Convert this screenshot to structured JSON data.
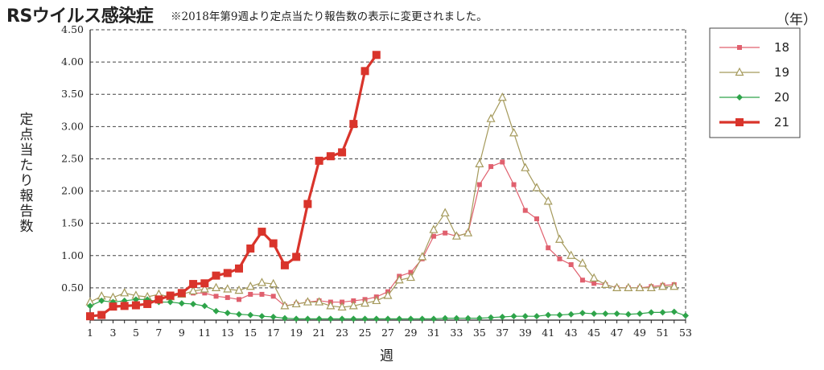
{
  "header": {
    "title": "RSウイルス感染症",
    "note": "※2018年第9週より定点当たり報告数の表示に変更されました。",
    "unit": "（年）"
  },
  "chart_data": {
    "type": "line",
    "title": "RSウイルス感染症",
    "xlabel": "週",
    "ylabel": "定点当たり報告数",
    "xlim": [
      1,
      53
    ],
    "ylim": [
      0,
      4.5
    ],
    "x_ticks": [
      1,
      3,
      5,
      7,
      9,
      11,
      13,
      15,
      17,
      19,
      21,
      23,
      25,
      27,
      29,
      31,
      33,
      35,
      37,
      39,
      41,
      43,
      45,
      47,
      49,
      51,
      53
    ],
    "y_ticks": [
      "0.50",
      "1.00",
      "1.50",
      "2.00",
      "2.50",
      "3.00",
      "3.50",
      "4.00",
      "4.50"
    ],
    "grid": true,
    "legend": "right",
    "series": [
      {
        "name": "18",
        "color": "#e0606e",
        "marker": "square-small",
        "x": [
          10,
          11,
          12,
          13,
          14,
          15,
          16,
          17,
          18,
          19,
          20,
          21,
          22,
          23,
          24,
          25,
          26,
          27,
          28,
          29,
          30,
          31,
          32,
          33,
          34,
          35,
          36,
          37,
          38,
          39,
          40,
          41,
          42,
          43,
          44,
          45,
          46,
          47,
          48,
          49,
          50,
          51,
          52
        ],
        "values": [
          0.42,
          0.42,
          0.37,
          0.35,
          0.32,
          0.4,
          0.4,
          0.37,
          0.22,
          0.25,
          0.28,
          0.3,
          0.28,
          0.28,
          0.3,
          0.32,
          0.36,
          0.44,
          0.68,
          0.74,
          0.95,
          1.3,
          1.35,
          1.3,
          1.35,
          2.1,
          2.38,
          2.45,
          2.1,
          1.7,
          1.57,
          1.12,
          0.95,
          0.86,
          0.62,
          0.57,
          0.55,
          0.5,
          0.5,
          0.5,
          0.52,
          0.54,
          0.55
        ]
      },
      {
        "name": "19",
        "color": "#a59a5c",
        "marker": "triangle",
        "x": [
          1,
          2,
          3,
          4,
          5,
          6,
          7,
          8,
          9,
          10,
          11,
          12,
          13,
          14,
          15,
          16,
          17,
          18,
          19,
          20,
          21,
          22,
          23,
          24,
          25,
          26,
          27,
          28,
          29,
          30,
          31,
          32,
          33,
          34,
          35,
          36,
          37,
          38,
          39,
          40,
          41,
          42,
          43,
          44,
          45,
          46,
          47,
          48,
          49,
          50,
          51,
          52
        ],
        "values": [
          0.28,
          0.37,
          0.35,
          0.42,
          0.38,
          0.36,
          0.4,
          0.36,
          0.4,
          0.45,
          0.48,
          0.5,
          0.48,
          0.46,
          0.52,
          0.58,
          0.56,
          0.22,
          0.25,
          0.28,
          0.28,
          0.22,
          0.2,
          0.22,
          0.26,
          0.3,
          0.38,
          0.62,
          0.66,
          0.98,
          1.4,
          1.66,
          1.3,
          1.35,
          2.42,
          3.12,
          3.45,
          2.9,
          2.36,
          2.05,
          1.84,
          1.25,
          1.0,
          0.88,
          0.65,
          0.55,
          0.5,
          0.5,
          0.5,
          0.5,
          0.52,
          0.52
        ]
      },
      {
        "name": "20",
        "color": "#2ea44a",
        "marker": "diamond",
        "x": [
          1,
          2,
          3,
          4,
          5,
          6,
          7,
          8,
          9,
          10,
          11,
          12,
          13,
          14,
          15,
          16,
          17,
          18,
          19,
          20,
          21,
          22,
          23,
          24,
          25,
          26,
          27,
          28,
          29,
          30,
          31,
          32,
          33,
          34,
          35,
          36,
          37,
          38,
          39,
          40,
          41,
          42,
          43,
          44,
          45,
          46,
          47,
          48,
          49,
          50,
          51,
          52,
          53
        ],
        "values": [
          0.22,
          0.3,
          0.28,
          0.3,
          0.32,
          0.32,
          0.28,
          0.28,
          0.26,
          0.25,
          0.22,
          0.14,
          0.11,
          0.09,
          0.08,
          0.06,
          0.05,
          0.03,
          0.02,
          0.02,
          0.02,
          0.02,
          0.02,
          0.02,
          0.02,
          0.02,
          0.02,
          0.02,
          0.02,
          0.02,
          0.02,
          0.03,
          0.03,
          0.03,
          0.03,
          0.04,
          0.05,
          0.06,
          0.06,
          0.06,
          0.08,
          0.08,
          0.09,
          0.11,
          0.1,
          0.1,
          0.1,
          0.09,
          0.1,
          0.12,
          0.12,
          0.13,
          0.07
        ]
      },
      {
        "name": "21",
        "color": "#d9342b",
        "marker": "square-large",
        "x": [
          1,
          2,
          3,
          4,
          5,
          6,
          7,
          8,
          9,
          10,
          11,
          12,
          13,
          14,
          15,
          16,
          17,
          18,
          19,
          20,
          21,
          22,
          23,
          24,
          25,
          26
        ],
        "values": [
          0.06,
          0.08,
          0.21,
          0.22,
          0.23,
          0.25,
          0.32,
          0.38,
          0.42,
          0.56,
          0.57,
          0.69,
          0.73,
          0.8,
          1.11,
          1.37,
          1.19,
          0.85,
          0.98,
          1.8,
          2.47,
          2.54,
          2.6,
          3.04,
          3.86,
          4.11
        ]
      }
    ]
  }
}
